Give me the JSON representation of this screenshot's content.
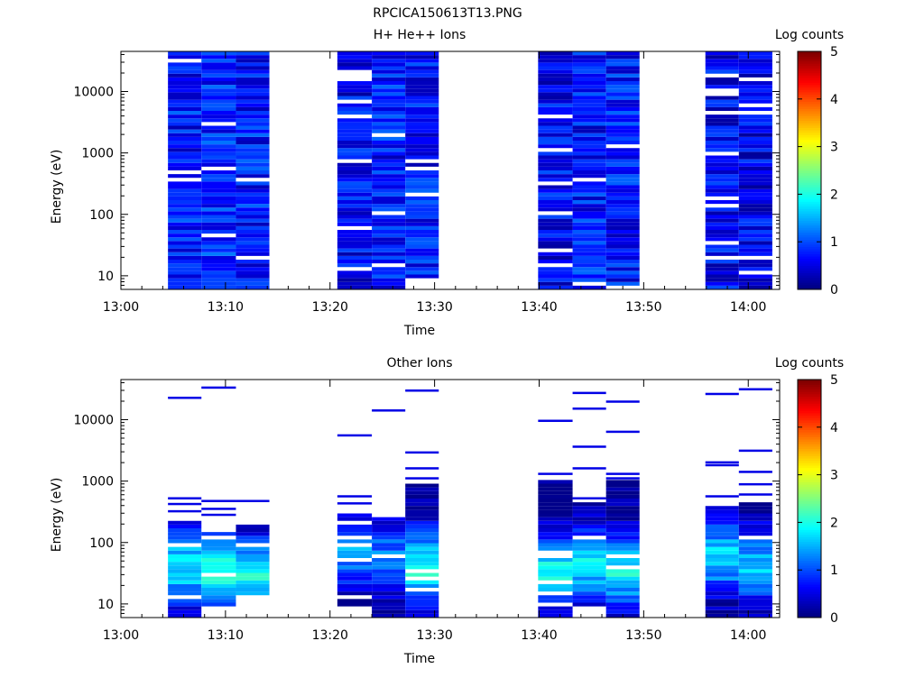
{
  "figure_title": "RPCICA150613T13.PNG",
  "chart_data": [
    {
      "type": "heatmap",
      "title": "H+ He++ Ions",
      "xlabel": "Time",
      "ylabel": "Energy (eV)",
      "yscale": "log",
      "ylim": [
        6,
        45000
      ],
      "xlim": [
        "13:00",
        "14:03"
      ],
      "xticks": [
        "13:00",
        "13:10",
        "13:20",
        "13:30",
        "13:40",
        "13:50",
        "14:00"
      ],
      "yticks": [
        "10",
        "100",
        "1000",
        "10000"
      ],
      "colorbar": {
        "label": "Log counts",
        "range": [
          0,
          5
        ],
        "ticks": [
          "0",
          "1",
          "2",
          "3",
          "4",
          "5"
        ]
      },
      "columns": [
        {
          "t_start": "13:04.5",
          "t_end": "13:07.7",
          "min_energy": 6,
          "base_level": 0.7
        },
        {
          "t_start": "13:07.7",
          "t_end": "13:11.0",
          "min_energy": 6,
          "base_level": 0.8
        },
        {
          "t_start": "13:11.0",
          "t_end": "13:14.2",
          "min_energy": 6,
          "base_level": 0.7
        },
        {
          "t_start": "13:20.7",
          "t_end": "13:24.0",
          "min_energy": 6,
          "base_level": 0.6
        },
        {
          "t_start": "13:24.0",
          "t_end": "13:27.2",
          "min_energy": 6,
          "base_level": 0.7
        },
        {
          "t_start": "13:27.2",
          "t_end": "13:30.4",
          "min_energy": 10,
          "base_level": 0.7
        },
        {
          "t_start": "13:39.9",
          "t_end": "13:43.2",
          "min_energy": 6,
          "base_level": 0.6
        },
        {
          "t_start": "13:43.2",
          "t_end": "13:46.4",
          "min_energy": 6,
          "base_level": 0.7
        },
        {
          "t_start": "13:46.4",
          "t_end": "13:49.6",
          "min_energy": 6,
          "base_level": 0.7
        },
        {
          "t_start": "13:55.9",
          "t_end": "13:59.1",
          "min_energy": 6,
          "base_level": 0.6
        },
        {
          "t_start": "13:59.1",
          "t_end": "14:02.3",
          "min_energy": 6,
          "base_level": 0.5
        }
      ]
    },
    {
      "type": "heatmap",
      "title": "Other Ions",
      "xlabel": "Time",
      "ylabel": "Energy (eV)",
      "yscale": "log",
      "ylim": [
        6,
        45000
      ],
      "xlim": [
        "13:00",
        "14:03"
      ],
      "xticks": [
        "13:00",
        "13:10",
        "13:20",
        "13:30",
        "13:40",
        "13:50",
        "14:00"
      ],
      "yticks": [
        "10",
        "100",
        "1000",
        "10000"
      ],
      "colorbar": {
        "label": "Log counts",
        "range": [
          0,
          5
        ],
        "ticks": [
          "0",
          "1",
          "2",
          "3",
          "4",
          "5"
        ]
      },
      "columns": [
        {
          "t_start": "13:04.5",
          "t_end": "13:07.7",
          "min_energy": 6,
          "max_energy": 200,
          "peak_level": 1.8,
          "peak_energy": 40,
          "sparse_lines": [
            320,
            420,
            520,
            22500
          ]
        },
        {
          "t_start": "13:07.7",
          "t_end": "13:11.0",
          "min_energy": 10,
          "max_energy": 160,
          "peak_level": 2.1,
          "peak_energy": 35,
          "sparse_lines": [
            280,
            350,
            470,
            33000
          ]
        },
        {
          "t_start": "13:11.0",
          "t_end": "13:14.2",
          "min_energy": 15,
          "max_energy": 190,
          "peak_level": 1.9,
          "peak_energy": 30,
          "sparse_lines": [
            470
          ]
        },
        {
          "t_start": "13:20.7",
          "t_end": "13:24.0",
          "min_energy": 10,
          "max_energy": 320,
          "peak_level": 1.4,
          "peak_energy": 70,
          "sparse_lines": [
            430,
            560,
            5500
          ]
        },
        {
          "t_start": "13:24.0",
          "t_end": "13:27.2",
          "min_energy": 6,
          "max_energy": 260,
          "peak_level": 1.2,
          "peak_energy": 60,
          "sparse_lines": [
            14000
          ]
        },
        {
          "t_start": "13:27.2",
          "t_end": "13:30.4",
          "min_energy": 6,
          "max_energy": 950,
          "peak_level": 2.0,
          "peak_energy": 40,
          "sparse_lines": [
            1100,
            1600,
            2900,
            29500
          ]
        },
        {
          "t_start": "13:39.9",
          "t_end": "13:43.2",
          "min_energy": 6,
          "max_energy": 1000,
          "peak_level": 1.9,
          "peak_energy": 35,
          "sparse_lines": [
            1300,
            9500
          ]
        },
        {
          "t_start": "13:43.2",
          "t_end": "13:46.4",
          "min_energy": 10,
          "max_energy": 400,
          "peak_level": 1.8,
          "peak_energy": 45,
          "sparse_lines": [
            520,
            1600,
            3600,
            15000,
            27000
          ]
        },
        {
          "t_start": "13:46.4",
          "t_end": "13:49.6",
          "min_energy": 6,
          "max_energy": 950,
          "peak_level": 1.9,
          "peak_energy": 35,
          "sparse_lines": [
            1100,
            1300,
            6300,
            19500
          ]
        },
        {
          "t_start": "13:55.9",
          "t_end": "13:59.1",
          "min_energy": 6,
          "max_energy": 380,
          "peak_level": 1.7,
          "peak_energy": 60,
          "sparse_lines": [
            560,
            1800,
            2000,
            26000
          ]
        },
        {
          "t_start": "13:59.1",
          "t_end": "14:02.3",
          "min_energy": 6,
          "max_energy": 420,
          "peak_level": 1.6,
          "peak_energy": 40,
          "sparse_lines": [
            600,
            880,
            1400,
            3100,
            31000
          ]
        }
      ]
    }
  ]
}
